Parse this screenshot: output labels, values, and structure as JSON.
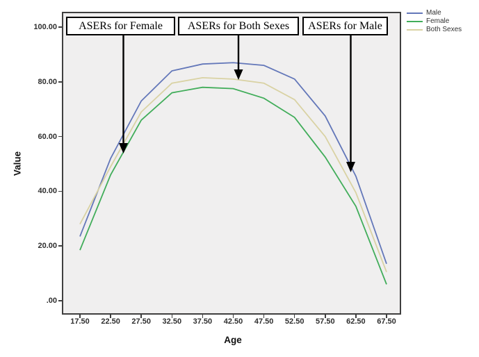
{
  "legend": {
    "items": [
      {
        "label": "Male",
        "color": "#6377b9"
      },
      {
        "label": "Female",
        "color": "#41ad5a"
      },
      {
        "label": "Both Sexes",
        "color": "#d9d2a3"
      }
    ]
  },
  "annotations": [
    {
      "label": "ASERs for Female",
      "target_series": "Female"
    },
    {
      "label": "ASERs for Both Sexes",
      "target_series": "Both Sexes"
    },
    {
      "label": "ASERs for Male",
      "target_series": "Male"
    }
  ],
  "axes": {
    "x": {
      "title": "Age",
      "tick_labels": [
        "17.50",
        "22.50",
        "27.50",
        "32.50",
        "37.50",
        "42.50",
        "47.50",
        "52.50",
        "57.50",
        "62.50",
        "67.50"
      ]
    },
    "y": {
      "title": "Value",
      "tick_labels": [
        ".00",
        "20.00",
        "40.00",
        "60.00",
        "80.00",
        "100.00"
      ]
    }
  },
  "colors": {
    "plot_bg": "#f0efef",
    "plot_border": "#3f3f3f",
    "arrow": "#000000",
    "annotation_border": "#000000",
    "tick_text": "#2e2e2e"
  },
  "chart_data": {
    "type": "line",
    "title": "",
    "xlabel": "Age",
    "ylabel": "Value",
    "x": [
      17.5,
      22.5,
      27.5,
      32.5,
      37.5,
      42.5,
      47.5,
      52.5,
      57.5,
      62.5,
      67.5
    ],
    "x_tick_labels": [
      "17.50",
      "22.50",
      "27.50",
      "32.50",
      "37.50",
      "42.50",
      "47.50",
      "52.50",
      "57.50",
      "62.50",
      "67.50"
    ],
    "ylim": [
      0,
      100
    ],
    "y_ticks": {
      "values": [
        0,
        20,
        40,
        60,
        80,
        100
      ],
      "labels": [
        ".00",
        "20.00",
        "40.00",
        "60.00",
        "80.00",
        "100.00"
      ]
    },
    "grid": false,
    "legend_position": "top-right-outside",
    "series": [
      {
        "name": "Male",
        "color": "#6377b9",
        "values": [
          23.5,
          52,
          73,
          84,
          86.5,
          87,
          86,
          81,
          67.5,
          45.5,
          13.5
        ]
      },
      {
        "name": "Female",
        "color": "#41ad5a",
        "values": [
          18.5,
          46,
          66,
          76,
          78,
          77.5,
          74,
          67,
          52.5,
          34.5,
          6
        ]
      },
      {
        "name": "Both Sexes",
        "color": "#d9d2a3",
        "values": [
          28,
          49,
          69,
          79.5,
          81.5,
          81,
          79.5,
          73.5,
          60,
          39.5,
          10.5
        ]
      }
    ],
    "annotations": [
      {
        "text": "ASERs for Female",
        "points_to": {
          "series": "Female",
          "age": 24.6
        }
      },
      {
        "text": "ASERs for Both Sexes",
        "points_to": {
          "series": "Both Sexes",
          "age": 43.7
        }
      },
      {
        "text": "ASERs for Male",
        "points_to": {
          "series": "Male",
          "age": 62.3
        }
      }
    ]
  }
}
